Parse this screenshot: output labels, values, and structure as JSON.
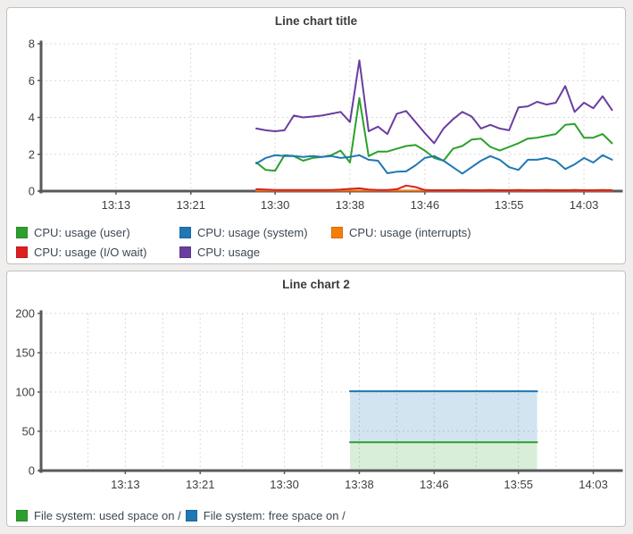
{
  "page": {
    "background": "#efeeec"
  },
  "chart_data": [
    {
      "type": "line",
      "title": "Line chart title",
      "x_range": [
        "13:05",
        "14:07"
      ],
      "xticks": [
        "13:13",
        "13:21",
        "13:30",
        "13:38",
        "13:46",
        "13:55",
        "14:03"
      ],
      "ylim": [
        0,
        8
      ],
      "yticks": [
        0,
        2,
        4,
        6,
        8
      ],
      "grid": "dashed",
      "legend_position": "bottom",
      "x": [
        "13:28",
        "13:29",
        "13:30",
        "13:31",
        "13:32",
        "13:33",
        "13:34",
        "13:35",
        "13:36",
        "13:37",
        "13:38",
        "13:39",
        "13:40",
        "13:41",
        "13:42",
        "13:43",
        "13:44",
        "13:45",
        "13:46",
        "13:47",
        "13:48",
        "13:49",
        "13:50",
        "13:51",
        "13:52",
        "13:53",
        "13:54",
        "13:55",
        "13:56",
        "13:57",
        "13:58",
        "13:59",
        "14:00",
        "14:01",
        "14:02",
        "14:03",
        "14:04",
        "14:05",
        "14:06"
      ],
      "series": [
        {
          "name": "CPU: usage (user)",
          "color": "#2ca02c",
          "values": [
            1.55,
            1.15,
            1.1,
            1.95,
            1.9,
            1.65,
            1.8,
            1.85,
            1.95,
            2.2,
            1.55,
            5.05,
            1.9,
            2.15,
            2.15,
            2.3,
            2.45,
            2.5,
            2.2,
            1.8,
            1.65,
            2.3,
            2.45,
            2.8,
            2.85,
            2.4,
            2.2,
            2.4,
            2.6,
            2.85,
            2.9,
            3.0,
            3.1,
            3.6,
            3.65,
            2.9,
            2.9,
            3.1,
            2.6
          ]
        },
        {
          "name": "CPU: usage (system)",
          "color": "#1f77b4",
          "values": [
            1.5,
            1.8,
            1.95,
            1.9,
            1.9,
            1.85,
            1.9,
            1.85,
            1.9,
            1.8,
            1.85,
            1.95,
            1.7,
            1.65,
            0.97,
            1.05,
            1.07,
            1.4,
            1.8,
            1.9,
            1.65,
            1.3,
            0.95,
            1.3,
            1.65,
            1.9,
            1.7,
            1.3,
            1.15,
            1.7,
            1.7,
            1.8,
            1.65,
            1.2,
            1.45,
            1.8,
            1.55,
            1.95,
            1.7
          ]
        },
        {
          "name": "CPU: usage (interrupts)",
          "color": "#f57d0a",
          "values": [
            0.03,
            0.03,
            0.03,
            0.03,
            0.03,
            0.03,
            0.03,
            0.03,
            0.03,
            0.03,
            0.03,
            0.03,
            0.03,
            0.03,
            0.03,
            0.03,
            0.03,
            0.03,
            0.03,
            0.03,
            0.03,
            0.03,
            0.03,
            0.03,
            0.03,
            0.03,
            0.03,
            0.03,
            0.03,
            0.03,
            0.03,
            0.03,
            0.03,
            0.03,
            0.03,
            0.03,
            0.03,
            0.03,
            0.03
          ]
        },
        {
          "name": "CPU: usage (I/O wait)",
          "color": "#dc1f1f",
          "values": [
            0.1,
            0.08,
            0.06,
            0.06,
            0.06,
            0.06,
            0.06,
            0.06,
            0.06,
            0.08,
            0.12,
            0.15,
            0.08,
            0.06,
            0.06,
            0.1,
            0.3,
            0.22,
            0.06,
            0.05,
            0.05,
            0.05,
            0.06,
            0.05,
            0.05,
            0.06,
            0.05,
            0.05,
            0.06,
            0.05,
            0.05,
            0.06,
            0.05,
            0.05,
            0.06,
            0.05,
            0.05,
            0.06,
            0.05
          ]
        },
        {
          "name": "CPU: usage",
          "color": "#6a3da0",
          "values": [
            3.4,
            3.3,
            3.25,
            3.3,
            4.1,
            4.0,
            4.05,
            4.1,
            4.2,
            4.3,
            3.75,
            7.1,
            3.25,
            3.5,
            3.1,
            4.2,
            4.35,
            3.75,
            3.15,
            2.6,
            3.4,
            3.9,
            4.3,
            4.05,
            3.4,
            3.6,
            3.4,
            3.3,
            4.55,
            4.6,
            4.85,
            4.7,
            4.8,
            5.7,
            4.3,
            4.8,
            4.5,
            5.15,
            4.4
          ]
        }
      ]
    },
    {
      "type": "area",
      "title": "Line chart 2",
      "x_range": [
        "13:04",
        "14:06"
      ],
      "xticks": [
        "13:13",
        "13:21",
        "13:30",
        "13:38",
        "13:46",
        "13:55",
        "14:03"
      ],
      "x_minor_gridlines": true,
      "ylim": [
        0,
        200
      ],
      "yticks": [
        0,
        50,
        100,
        150,
        200
      ],
      "grid": "dashed",
      "legend_position": "bottom",
      "x": [
        "13:37",
        "13:57"
      ],
      "series": [
        {
          "name": "File system: used space on /",
          "color": "#2ca02c",
          "fill": "tozero",
          "fill_color": "rgba(44,160,44,0.18)",
          "values": [
            36,
            36
          ]
        },
        {
          "name": "File system: free space on /",
          "color": "#1f77b4",
          "fill": "toprev",
          "fill_color": "rgba(31,119,180,0.20)",
          "values": [
            101,
            101
          ]
        }
      ]
    }
  ]
}
